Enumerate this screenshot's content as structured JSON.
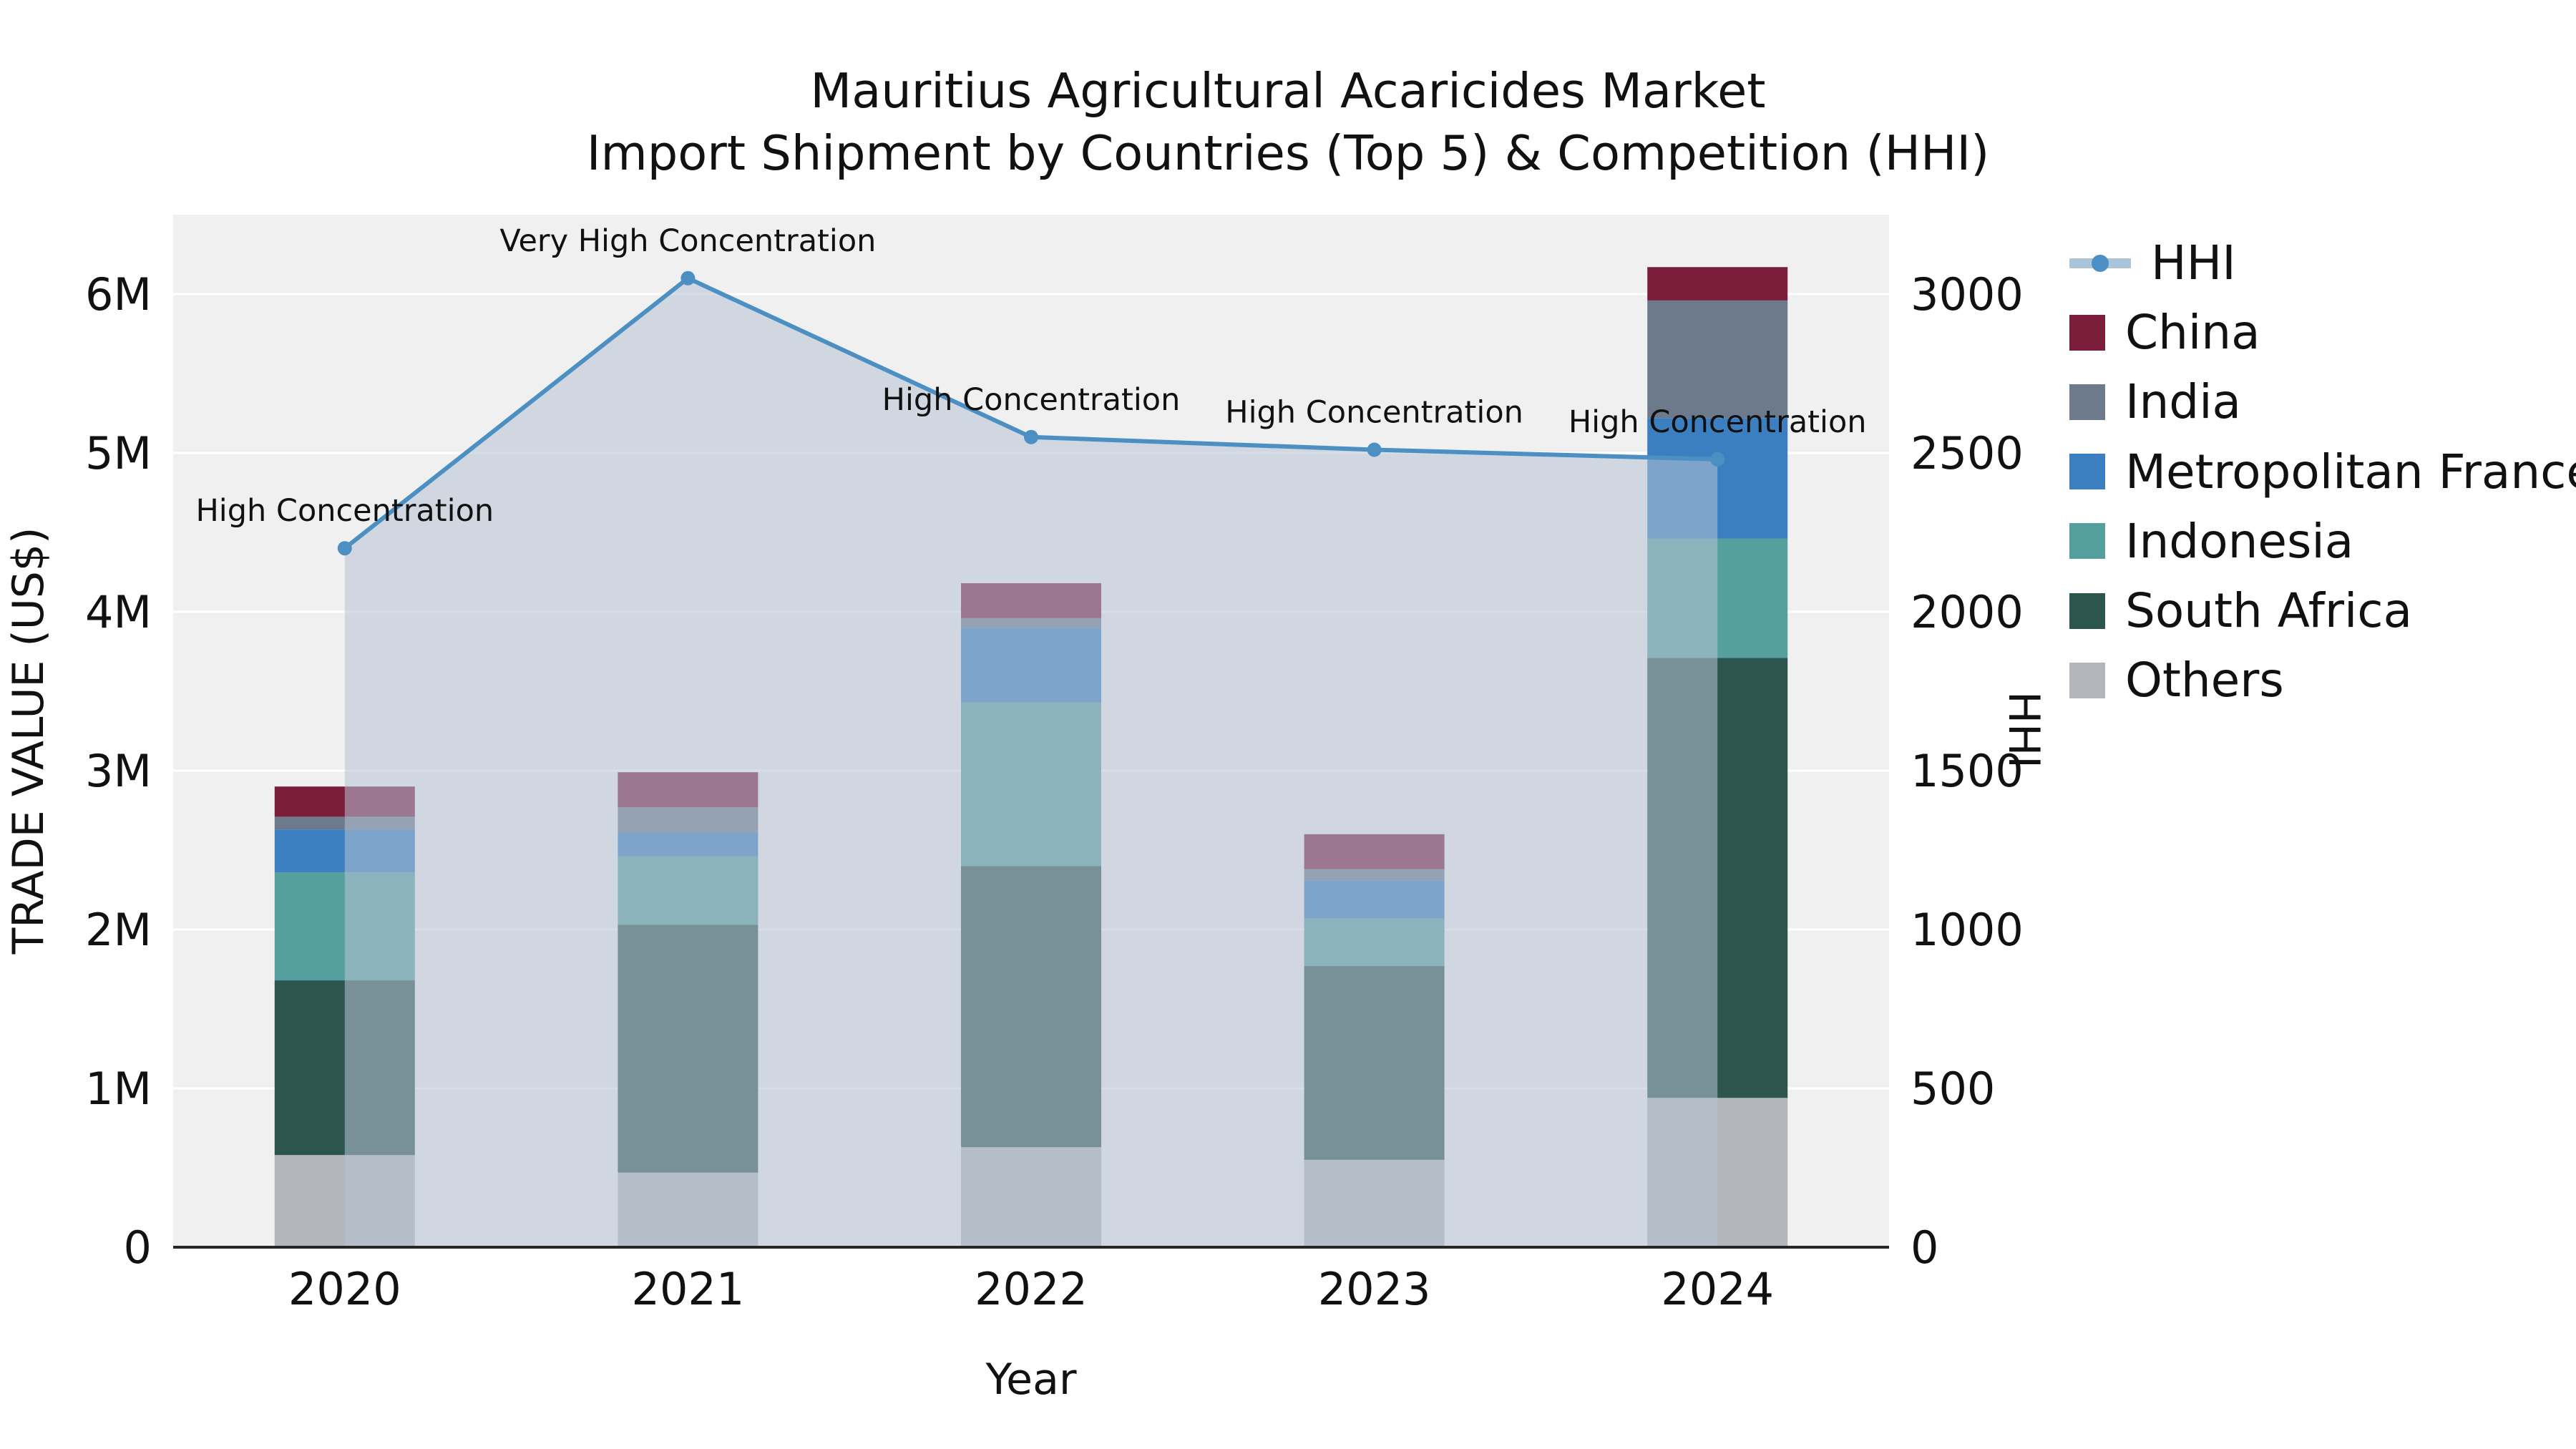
{
  "chart_data": {
    "type": "bar",
    "title_line1": "Mauritius Agricultural Acaricides Market",
    "title_line2": "Import Shipment by Countries (Top 5) & Competition (HHI)",
    "xlabel": "Year",
    "ylabel_left": "TRADE VALUE (US$)",
    "ylabel_right": "HHI",
    "categories": [
      "2020",
      "2021",
      "2022",
      "2023",
      "2024"
    ],
    "bar_series": [
      {
        "name": "Others",
        "color": "#b3b7bb",
        "values": [
          580000,
          470000,
          630000,
          550000,
          940000
        ]
      },
      {
        "name": "South Africa",
        "color": "#2d5550",
        "values": [
          1100000,
          1560000,
          1770000,
          1220000,
          2770000
        ]
      },
      {
        "name": "Indonesia",
        "color": "#55a09e",
        "values": [
          680000,
          430000,
          1030000,
          300000,
          750000
        ]
      },
      {
        "name": "Metropolitan France",
        "color": "#3c7fc0",
        "values": [
          270000,
          150000,
          470000,
          240000,
          760000
        ]
      },
      {
        "name": "India",
        "color": "#6c7a8c",
        "values": [
          80000,
          160000,
          60000,
          70000,
          740000
        ]
      },
      {
        "name": "China",
        "color": "#7a1e3c",
        "values": [
          190000,
          220000,
          220000,
          220000,
          210000
        ]
      }
    ],
    "line_series": {
      "name": "HHI",
      "color": "#4c8fc2",
      "area_color": "#b6c2d4",
      "values": [
        2200,
        3050,
        2550,
        2510,
        2480
      ]
    },
    "annotations": [
      "High Concentration",
      "Very High Concentration",
      "High Concentration",
      "High Concentration",
      "High Concentration"
    ],
    "left_ticks": {
      "labels": [
        "0",
        "1M",
        "2M",
        "3M",
        "4M",
        "5M",
        "6M"
      ],
      "values": [
        0,
        1000000,
        2000000,
        3000000,
        4000000,
        5000000,
        6000000
      ]
    },
    "right_ticks": {
      "labels": [
        "0",
        "500",
        "1000",
        "1500",
        "2000",
        "2500",
        "3000"
      ],
      "values": [
        0,
        500,
        1000,
        1500,
        2000,
        2500,
        3000
      ]
    },
    "ylim_left": [
      0,
      6500000
    ],
    "ylim_right": [
      0,
      3250
    ],
    "grid": true,
    "legend_position": "right"
  }
}
